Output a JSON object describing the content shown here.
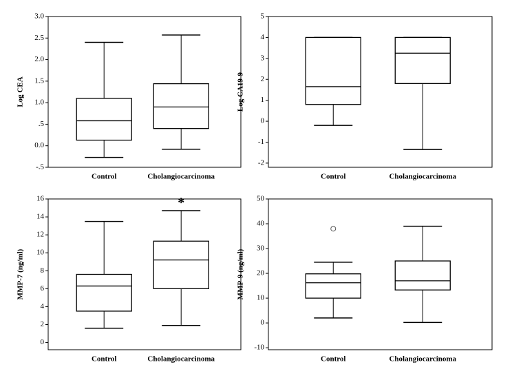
{
  "chart_data": [
    {
      "type": "box",
      "ylabel": "Log CEA",
      "categories": [
        "Control",
        "Cholangiocarcinoma"
      ],
      "boxes": [
        {
          "min": -0.27,
          "q1": 0.13,
          "median": 0.58,
          "q3": 1.1,
          "max": 2.4
        },
        {
          "min": -0.08,
          "q1": 0.4,
          "median": 0.9,
          "q3": 1.44,
          "max": 2.57
        }
      ],
      "ylim": [
        -0.5,
        3.0
      ],
      "yticks": [
        {
          "value": -0.5,
          "label": "-.5"
        },
        {
          "value": 0,
          "label": "0.0"
        },
        {
          "value": 0.5,
          "label": ".5"
        },
        {
          "value": 1,
          "label": "1.0"
        },
        1.5,
        {
          "value": 2,
          "label": "2.0"
        },
        2.5,
        {
          "value": 3,
          "label": "3.0"
        }
      ],
      "color": "#000000"
    },
    {
      "type": "box",
      "ylabel": "Log CA19-9",
      "categories": [
        "Control",
        "Cholangiocarcinoma"
      ],
      "boxes": [
        {
          "min": -0.2,
          "q1": 0.8,
          "median": 1.65,
          "q3": 4,
          "max": 4
        },
        {
          "min": -1.35,
          "q1": 1.8,
          "median": 3.25,
          "q3": 4,
          "max": 4
        }
      ],
      "ylim": [
        -2.2,
        5
      ],
      "yticks": [
        -2,
        -1,
        0,
        1,
        2,
        3,
        4,
        5
      ],
      "color": "#000000"
    },
    {
      "type": "box",
      "ylabel": "MMP-7 (ng/ml)",
      "categories": [
        "Control",
        "Cholangiocarcinoma"
      ],
      "boxes": [
        {
          "min": 1.6,
          "q1": 3.5,
          "median": 6.3,
          "q3": 7.6,
          "max": 13.5
        },
        {
          "min": 1.9,
          "q1": 6.0,
          "median": 9.2,
          "q3": 11.3,
          "max": 14.7
        }
      ],
      "ylim": [
        -0.8,
        16
      ],
      "yticks": [
        0,
        2,
        4,
        6,
        8,
        10,
        12,
        14,
        16
      ],
      "annotation": "*",
      "color": "#000000"
    },
    {
      "type": "box",
      "ylabel": "MMP-9 (ng/ml)",
      "categories": [
        "Control",
        "Cholangiocarcinoma"
      ],
      "boxes": [
        {
          "min": 2,
          "q1": 10,
          "median": 16.2,
          "q3": 19.8,
          "max": 24.5,
          "outliers": [
            38
          ]
        },
        {
          "min": 0.2,
          "q1": 13.3,
          "median": 17,
          "q3": 25,
          "max": 39
        }
      ],
      "ylim": [
        -10.8,
        50
      ],
      "yticks": [
        -10,
        0,
        10,
        20,
        30,
        40,
        50
      ],
      "color": "#000000"
    }
  ]
}
